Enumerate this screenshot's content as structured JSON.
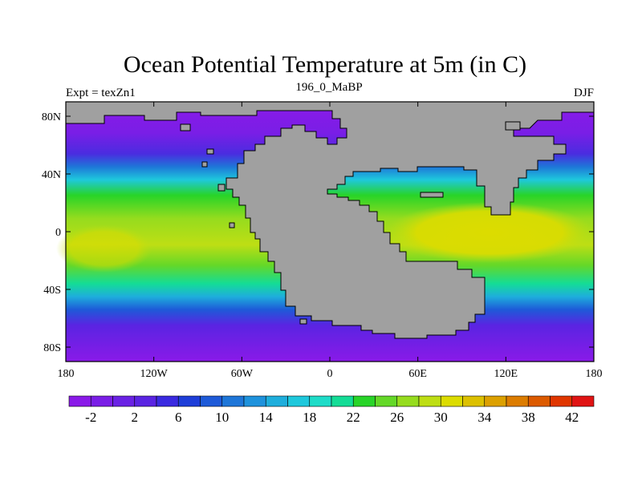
{
  "title": "Ocean Potential Temperature at 5m (in C)",
  "left_label": "Expt = texZn1",
  "center_label": "196_0_MaBP",
  "right_label": "DJF",
  "map": {
    "lon_ticks": [
      "180",
      "120W",
      "60W",
      "0",
      "60E",
      "120E",
      "180"
    ],
    "lat_ticks": [
      "80N",
      "40N",
      "0",
      "40S",
      "80S"
    ],
    "lon_range": [
      -180,
      180
    ],
    "lat_range": [
      -90,
      90
    ],
    "land_color": "#a0a0a0"
  },
  "colorbar": {
    "labels": [
      "-2",
      "2",
      "6",
      "10",
      "14",
      "18",
      "22",
      "26",
      "30",
      "34",
      "38",
      "42"
    ],
    "colors": [
      "#8a1ae8",
      "#7a1ee6",
      "#6a22e4",
      "#5a24e2",
      "#3a2ae0",
      "#1e3ed8",
      "#1e5ad8",
      "#1e76d8",
      "#1e92dc",
      "#1eaedc",
      "#1ec8dc",
      "#1edcc8",
      "#14dc96",
      "#28d428",
      "#64d828",
      "#96dc1e",
      "#bede14",
      "#dcdc00",
      "#dcc000",
      "#dca000",
      "#dc7c00",
      "#dc5a00",
      "#e03600",
      "#e01414"
    ]
  }
}
